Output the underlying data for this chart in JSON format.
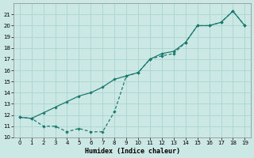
{
  "xlabel": "Humidex (Indice chaleur)",
  "line1_x": [
    0,
    1,
    2,
    3,
    4,
    5,
    6,
    7,
    8,
    9,
    10,
    11,
    12,
    13,
    14,
    15,
    16,
    17,
    18,
    19
  ],
  "line1_y": [
    11.8,
    11.7,
    11.0,
    11.0,
    10.5,
    10.8,
    10.5,
    10.5,
    12.3,
    15.5,
    15.8,
    17.0,
    17.3,
    17.5,
    18.5,
    20.0,
    20.0,
    20.3,
    21.3,
    20.0
  ],
  "line2_x": [
    0,
    1,
    2,
    3,
    4,
    5,
    6,
    7,
    8,
    9,
    10,
    11,
    12,
    13,
    14,
    15,
    16,
    17,
    18,
    19
  ],
  "line2_y": [
    11.8,
    11.7,
    12.2,
    12.7,
    13.2,
    13.7,
    14.0,
    14.5,
    15.2,
    15.5,
    15.8,
    17.0,
    17.5,
    17.7,
    18.5,
    20.0,
    20.0,
    20.3,
    21.3,
    20.0
  ],
  "line_color": "#1a7a6e",
  "bg_color": "#cce8e4",
  "grid_color": "#aad4d0",
  "ylim": [
    10,
    22
  ],
  "xlim": [
    -0.5,
    19.5
  ],
  "yticks": [
    10,
    11,
    12,
    13,
    14,
    15,
    16,
    17,
    18,
    19,
    20,
    21
  ],
  "xticks": [
    0,
    1,
    2,
    3,
    4,
    5,
    6,
    7,
    8,
    9,
    10,
    11,
    12,
    13,
    14,
    15,
    16,
    17,
    18,
    19
  ]
}
